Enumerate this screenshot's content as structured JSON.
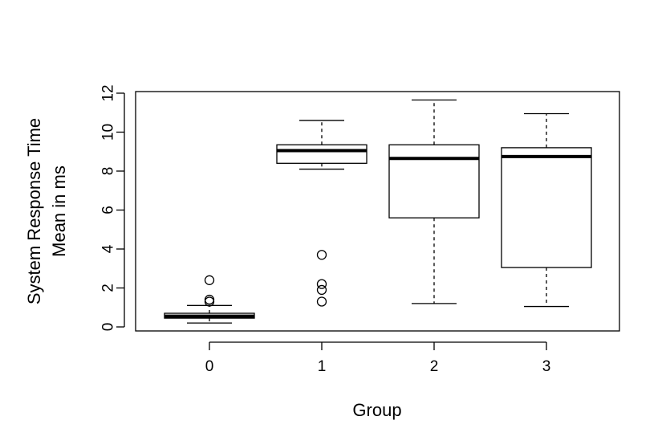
{
  "chart_data": {
    "type": "boxplot",
    "title": "",
    "xlabel": "Group",
    "ylabel_lines": [
      "System Response Time",
      "Mean in ms"
    ],
    "ylim": [
      -0.3,
      12.1
    ],
    "yticks": [
      0,
      2,
      4,
      6,
      8,
      10,
      12
    ],
    "categories": [
      "0",
      "1",
      "2",
      "3"
    ],
    "boxes": [
      {
        "category": "0",
        "whisker_low": 0.2,
        "q1": 0.45,
        "median": 0.55,
        "q3": 0.7,
        "whisker_high": 1.1,
        "outliers": [
          1.3,
          1.4,
          2.4
        ]
      },
      {
        "category": "1",
        "whisker_low": 8.1,
        "q1": 8.4,
        "median": 9.05,
        "q3": 9.35,
        "whisker_high": 10.6,
        "outliers": [
          1.3,
          1.9,
          2.2,
          3.7
        ]
      },
      {
        "category": "2",
        "whisker_low": 1.2,
        "q1": 5.6,
        "median": 8.65,
        "q3": 9.35,
        "whisker_high": 11.65,
        "outliers": []
      },
      {
        "category": "3",
        "whisker_low": 1.05,
        "q1": 3.05,
        "median": 8.75,
        "q3": 9.2,
        "whisker_high": 10.95,
        "outliers": []
      }
    ],
    "grid": false,
    "legend": "none"
  }
}
